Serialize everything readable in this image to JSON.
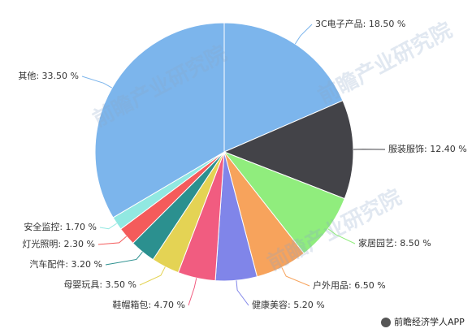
{
  "chart_data": {
    "type": "pie",
    "values": [
      18.5,
      12.4,
      8.5,
      6.5,
      5.2,
      4.7,
      3.5,
      3.2,
      2.3,
      1.7,
      33.5
    ],
    "value_labels": [
      "3C电子产品: 18.50 %",
      "服装服饰: 12.40 %",
      "家居园艺: 8.50 %",
      "户外用品: 6.50 %",
      "健康美容: 5.20 %",
      "鞋帽箱包: 4.70 %",
      "母婴玩具: 3.50 %",
      "汽车配件: 3.20 %",
      "灯光照明: 2.30 %",
      "安全监控: 1.70 %",
      "其他: 33.50 %"
    ],
    "colors": [
      "#7cb5ec",
      "#434348",
      "#90ed7d",
      "#f7a35c",
      "#8085e9",
      "#f15c80",
      "#e4d354",
      "#2b908f",
      "#f45b5b",
      "#91e8e1",
      "#7cb5ec"
    ]
  },
  "watermark": "前瞻产业研究院",
  "source": "前瞻经济学人APP"
}
